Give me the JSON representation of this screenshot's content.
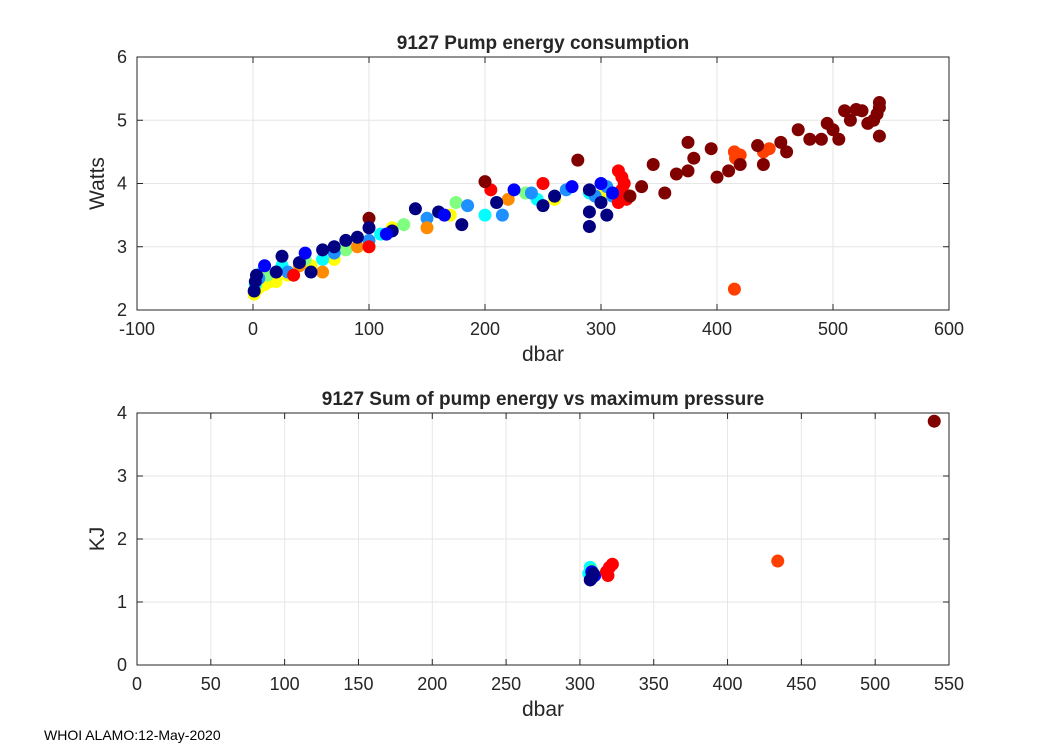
{
  "footer": "WHOI ALAMO:12-May-2020",
  "chart_data": [
    {
      "type": "scatter",
      "title": "9127 Pump energy consumption",
      "xlabel": "dbar",
      "ylabel": "Watts",
      "xlim": [
        -100,
        600
      ],
      "ylim": [
        2,
        6
      ],
      "xticks": [
        -100,
        0,
        100,
        200,
        300,
        400,
        500,
        600
      ],
      "yticks": [
        2,
        3,
        4,
        5,
        6
      ],
      "xtick_labels": [
        "-100",
        "0",
        "100",
        "200",
        "300",
        "400",
        "500",
        "600"
      ],
      "ytick_labels": [
        "2",
        "3",
        "4",
        "5",
        "6"
      ],
      "grid": true,
      "colormap": "jet (by profile)",
      "series": [
        {
          "name": "yellow",
          "color": "#ffff00",
          "points": [
            [
              1,
              2.25
            ],
            [
              5,
              2.35
            ],
            [
              10,
              2.4
            ],
            [
              15,
              2.45
            ],
            [
              20,
              2.45
            ],
            [
              30,
              2.55
            ],
            [
              50,
              2.7
            ],
            [
              70,
              2.8
            ],
            [
              100,
              3.0
            ],
            [
              120,
              3.3
            ],
            [
              170,
              3.5
            ],
            [
              260,
              3.75
            ],
            [
              300,
              3.8
            ]
          ]
        },
        {
          "name": "cyan",
          "color": "#00ffff",
          "points": [
            [
              2,
              2.4
            ],
            [
              8,
              2.6
            ],
            [
              25,
              2.7
            ],
            [
              60,
              2.8
            ],
            [
              110,
              3.2
            ],
            [
              200,
              3.5
            ],
            [
              245,
              3.75
            ],
            [
              290,
              3.85
            ]
          ]
        },
        {
          "name": "light-green",
          "color": "#80ff80",
          "points": [
            [
              12,
              2.55
            ],
            [
              45,
              2.8
            ],
            [
              80,
              2.95
            ],
            [
              130,
              3.35
            ],
            [
              175,
              3.7
            ],
            [
              235,
              3.85
            ]
          ]
        },
        {
          "name": "sky-blue",
          "color": "#1e90ff",
          "points": [
            [
              5,
              2.5
            ],
            [
              30,
              2.6
            ],
            [
              70,
              2.9
            ],
            [
              100,
              3.1
            ],
            [
              150,
              3.45
            ],
            [
              185,
              3.65
            ],
            [
              215,
              3.5
            ],
            [
              240,
              3.85
            ],
            [
              270,
              3.9
            ],
            [
              295,
              3.8
            ],
            [
              305,
              3.95
            ],
            [
              310,
              3.8
            ]
          ]
        },
        {
          "name": "orange",
          "color": "#ff8c00",
          "points": [
            [
              40,
              2.7
            ],
            [
              60,
              2.6
            ],
            [
              90,
              3.0
            ],
            [
              150,
              3.3
            ],
            [
              220,
              3.75
            ],
            [
              320,
              3.85
            ]
          ]
        },
        {
          "name": "red-orange",
          "color": "#ff4000",
          "points": [
            [
              415,
              4.5
            ],
            [
              416,
              4.4
            ],
            [
              420,
              4.45
            ],
            [
              440,
              4.5
            ],
            [
              445,
              4.55
            ],
            [
              415,
              2.33
            ]
          ]
        },
        {
          "name": "red",
          "color": "#ff0000",
          "points": [
            [
              35,
              2.55
            ],
            [
              100,
              3.0
            ],
            [
              205,
              3.9
            ],
            [
              250,
              4.0
            ],
            [
              315,
              4.2
            ],
            [
              318,
              4.1
            ],
            [
              320,
              4.0
            ],
            [
              318,
              3.9
            ],
            [
              320,
              3.8
            ],
            [
              315,
              3.7
            ],
            [
              322,
              3.75
            ]
          ]
        },
        {
          "name": "dark-red",
          "color": "#800000",
          "points": [
            [
              100,
              3.45
            ],
            [
              200,
              4.03
            ],
            [
              280,
              4.37
            ],
            [
              325,
              3.8
            ],
            [
              335,
              3.95
            ],
            [
              345,
              4.3
            ],
            [
              355,
              3.85
            ],
            [
              365,
              4.15
            ],
            [
              375,
              4.2
            ],
            [
              380,
              4.4
            ],
            [
              395,
              4.55
            ],
            [
              400,
              4.1
            ],
            [
              410,
              4.2
            ],
            [
              420,
              4.3
            ],
            [
              435,
              4.6
            ],
            [
              440,
              4.3
            ],
            [
              455,
              4.65
            ],
            [
              460,
              4.5
            ],
            [
              470,
              4.85
            ],
            [
              480,
              4.7
            ],
            [
              490,
              4.7
            ],
            [
              495,
              4.95
            ],
            [
              500,
              4.85
            ],
            [
              505,
              4.7
            ],
            [
              510,
              5.15
            ],
            [
              515,
              5.0
            ],
            [
              520,
              5.17
            ],
            [
              525,
              5.15
            ],
            [
              530,
              4.95
            ],
            [
              535,
              5.0
            ],
            [
              538,
              5.1
            ],
            [
              540,
              5.2
            ],
            [
              540,
              4.75
            ],
            [
              540,
              5.28
            ],
            [
              375,
              4.65
            ]
          ]
        },
        {
          "name": "dark-blue",
          "color": "#000080",
          "points": [
            [
              1,
              2.3
            ],
            [
              2,
              2.45
            ],
            [
              3,
              2.55
            ],
            [
              20,
              2.6
            ],
            [
              25,
              2.85
            ],
            [
              40,
              2.75
            ],
            [
              50,
              2.6
            ],
            [
              60,
              2.95
            ],
            [
              70,
              3.0
            ],
            [
              80,
              3.1
            ],
            [
              90,
              3.15
            ],
            [
              100,
              3.3
            ],
            [
              120,
              3.25
            ],
            [
              140,
              3.6
            ],
            [
              160,
              3.55
            ],
            [
              180,
              3.35
            ],
            [
              210,
              3.7
            ],
            [
              250,
              3.65
            ],
            [
              260,
              3.8
            ],
            [
              290,
              3.32
            ],
            [
              290,
              3.55
            ],
            [
              300,
              3.7
            ],
            [
              305,
              3.5
            ],
            [
              290,
              3.9
            ]
          ]
        },
        {
          "name": "blue",
          "color": "#0000ff",
          "points": [
            [
              10,
              2.7
            ],
            [
              45,
              2.9
            ],
            [
              115,
              3.2
            ],
            [
              165,
              3.5
            ],
            [
              225,
              3.9
            ],
            [
              275,
              3.95
            ],
            [
              300,
              4.0
            ],
            [
              310,
              3.85
            ]
          ]
        }
      ]
    },
    {
      "type": "scatter",
      "title": "9127 Sum of pump energy vs maximum pressure",
      "xlabel": "dbar",
      "ylabel": "KJ",
      "xlim": [
        0,
        550
      ],
      "ylim": [
        0,
        4
      ],
      "xticks": [
        0,
        50,
        100,
        150,
        200,
        250,
        300,
        350,
        400,
        450,
        500,
        550
      ],
      "yticks": [
        0,
        1,
        2,
        3,
        4
      ],
      "xtick_labels": [
        "0",
        "50",
        "100",
        "150",
        "200",
        "250",
        "300",
        "350",
        "400",
        "450",
        "500",
        "550"
      ],
      "ytick_labels": [
        "0",
        "1",
        "2",
        "3",
        "4"
      ],
      "grid": true,
      "colormap": "jet (by profile)",
      "series": [
        {
          "name": "cyan",
          "color": "#00ffff",
          "points": [
            [
              307,
              1.55
            ],
            [
              306,
              1.45
            ],
            [
              309,
              1.4
            ]
          ]
        },
        {
          "name": "green",
          "color": "#40ff80",
          "points": [
            [
              308,
              1.5
            ]
          ]
        },
        {
          "name": "blue",
          "color": "#0000ff",
          "points": [
            [
              308,
              1.48
            ],
            [
              310,
              1.42
            ]
          ]
        },
        {
          "name": "dark-blue",
          "color": "#000080",
          "points": [
            [
              307,
              1.35
            ],
            [
              309,
              1.45
            ],
            [
              308,
              1.38
            ]
          ]
        },
        {
          "name": "red",
          "color": "#ff0000",
          "points": [
            [
              318,
              1.48
            ],
            [
              320,
              1.55
            ],
            [
              322,
              1.6
            ],
            [
              319,
              1.42
            ]
          ]
        },
        {
          "name": "red-orange",
          "color": "#ff4000",
          "points": [
            [
              434,
              1.65
            ]
          ]
        },
        {
          "name": "dark-red",
          "color": "#800000",
          "points": [
            [
              540,
              3.87
            ]
          ]
        }
      ]
    }
  ]
}
